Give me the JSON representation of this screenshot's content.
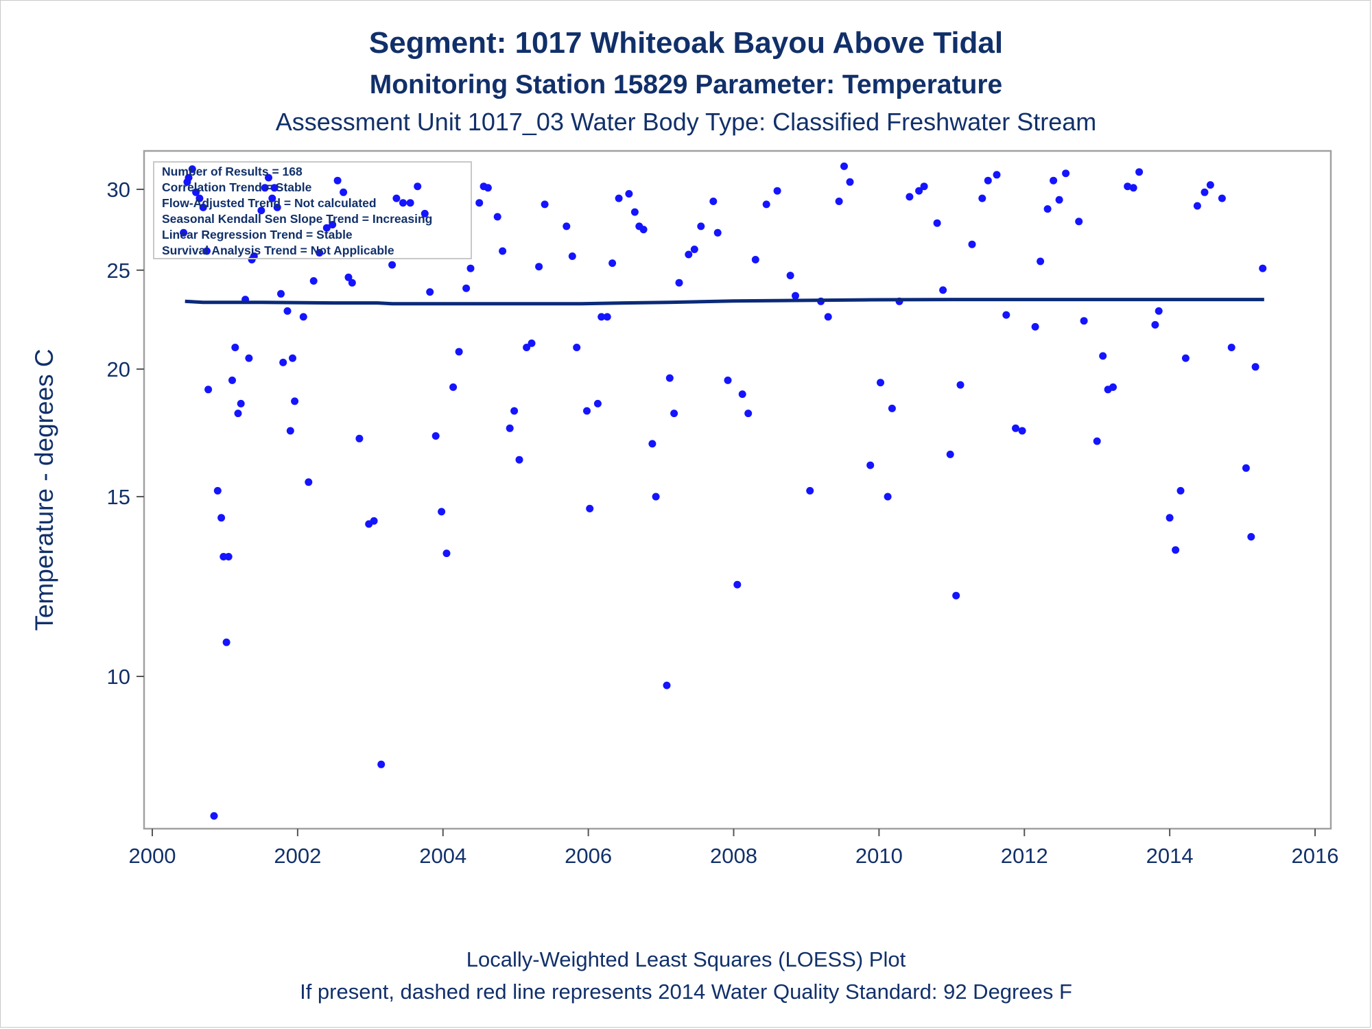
{
  "chart_data": {
    "type": "scatter",
    "title": "Segment: 1017  Whiteoak Bayou Above Tidal",
    "subtitle": "Monitoring Station 15829 Parameter: Temperature",
    "subtitle2": "Assessment Unit 1017_03   Water Body Type: Classified Freshwater Stream",
    "ylabel": "Temperature - degrees C",
    "xlabel": "",
    "footnote1": "Locally-Weighted Least Squares (LOESS) Plot",
    "footnote2": "If present, dashed red line represents 2014 Water Quality Standard: 92   Degrees F",
    "y_scale": "log",
    "xlim": [
      2000,
      2016
    ],
    "ylim": [
      7.5,
      32.5
    ],
    "x_ticks": [
      "2000",
      "2002",
      "2004",
      "2006",
      "2008",
      "2010",
      "2012",
      "2014",
      "2016"
    ],
    "y_ticks": [
      "10",
      "15",
      "20",
      "25",
      "30"
    ],
    "grid": false,
    "point_color": "#1414ff",
    "line_color": "#0b2a78",
    "stats_box": [
      "Number of Results = 168",
      "Correlation Trend = Stable",
      "Flow-Adjusted Trend = Not calculated",
      "Seasonal Kendall Sen Slope Trend = Increasing",
      "Linear Regression Trend = Stable",
      "Survival Analysis Trend = Not Applicable"
    ],
    "loess": {
      "x": [
        2000.45,
        2000.7,
        2001.5,
        2002.5,
        2003.1,
        2003.3,
        2004,
        2005,
        2005.9,
        2006.5,
        2007.1,
        2008,
        2009.8,
        2011,
        2012,
        2013,
        2014,
        2015.3
      ],
      "y": [
        23.3,
        23.25,
        23.25,
        23.22,
        23.22,
        23.18,
        23.18,
        23.18,
        23.18,
        23.22,
        23.25,
        23.32,
        23.38,
        23.4,
        23.4,
        23.4,
        23.4,
        23.4
      ]
    },
    "points": [
      [
        2000.43,
        27.2
      ],
      [
        2000.48,
        30.5
      ],
      [
        2000.5,
        30.8
      ],
      [
        2000.55,
        31.4
      ],
      [
        2000.6,
        29.8
      ],
      [
        2000.65,
        29.4
      ],
      [
        2000.7,
        28.8
      ],
      [
        2000.75,
        26.1
      ],
      [
        2000.77,
        19.1
      ],
      [
        2000.85,
        7.3
      ],
      [
        2000.9,
        15.2
      ],
      [
        2000.95,
        14.3
      ],
      [
        2000.98,
        13.1
      ],
      [
        2001.02,
        10.8
      ],
      [
        2001.05,
        13.1
      ],
      [
        2001.1,
        19.5
      ],
      [
        2001.14,
        21.0
      ],
      [
        2001.18,
        18.1
      ],
      [
        2001.22,
        18.5
      ],
      [
        2001.28,
        23.4
      ],
      [
        2001.33,
        20.5
      ],
      [
        2001.37,
        25.6
      ],
      [
        2001.4,
        25.8
      ],
      [
        2001.5,
        28.6
      ],
      [
        2001.55,
        30.1
      ],
      [
        2001.6,
        30.8
      ],
      [
        2001.65,
        29.4
      ],
      [
        2001.68,
        30.1
      ],
      [
        2001.72,
        28.8
      ],
      [
        2001.77,
        23.7
      ],
      [
        2001.8,
        20.3
      ],
      [
        2001.86,
        22.8
      ],
      [
        2001.9,
        17.4
      ],
      [
        2001.93,
        20.5
      ],
      [
        2001.96,
        18.6
      ],
      [
        2002.08,
        22.5
      ],
      [
        2002.15,
        15.5
      ],
      [
        2002.22,
        24.4
      ],
      [
        2002.3,
        26.0
      ],
      [
        2002.4,
        27.5
      ],
      [
        2002.48,
        27.7
      ],
      [
        2002.55,
        30.6
      ],
      [
        2002.63,
        29.8
      ],
      [
        2002.7,
        24.6
      ],
      [
        2002.75,
        24.3
      ],
      [
        2002.85,
        17.1
      ],
      [
        2002.98,
        14.1
      ],
      [
        2003.05,
        14.2
      ],
      [
        2003.15,
        8.2
      ],
      [
        2003.3,
        25.3
      ],
      [
        2003.36,
        29.4
      ],
      [
        2003.45,
        29.1
      ],
      [
        2003.55,
        29.1
      ],
      [
        2003.65,
        30.2
      ],
      [
        2003.75,
        28.4
      ],
      [
        2003.82,
        23.8
      ],
      [
        2003.9,
        17.2
      ],
      [
        2003.98,
        14.5
      ],
      [
        2004.05,
        13.2
      ],
      [
        2004.14,
        19.2
      ],
      [
        2004.22,
        20.8
      ],
      [
        2004.32,
        24.0
      ],
      [
        2004.38,
        25.1
      ],
      [
        2004.5,
        29.1
      ],
      [
        2004.56,
        30.2
      ],
      [
        2004.62,
        30.1
      ],
      [
        2004.75,
        28.2
      ],
      [
        2004.82,
        26.1
      ],
      [
        2004.92,
        17.5
      ],
      [
        2004.98,
        18.2
      ],
      [
        2005.05,
        16.3
      ],
      [
        2005.15,
        21.0
      ],
      [
        2005.22,
        21.2
      ],
      [
        2005.32,
        25.2
      ],
      [
        2005.4,
        29.0
      ],
      [
        2005.7,
        27.6
      ],
      [
        2005.78,
        25.8
      ],
      [
        2005.84,
        21.0
      ],
      [
        2005.98,
        18.2
      ],
      [
        2006.02,
        14.6
      ],
      [
        2006.13,
        18.5
      ],
      [
        2006.18,
        22.5
      ],
      [
        2006.26,
        22.5
      ],
      [
        2006.33,
        25.4
      ],
      [
        2006.42,
        29.4
      ],
      [
        2006.56,
        29.7
      ],
      [
        2006.64,
        28.5
      ],
      [
        2006.7,
        27.6
      ],
      [
        2006.76,
        27.4
      ],
      [
        2006.88,
        16.9
      ],
      [
        2006.93,
        15.0
      ],
      [
        2007.08,
        9.8
      ],
      [
        2007.12,
        19.6
      ],
      [
        2007.18,
        18.1
      ],
      [
        2007.25,
        24.3
      ],
      [
        2007.38,
        25.9
      ],
      [
        2007.46,
        26.2
      ],
      [
        2007.55,
        27.6
      ],
      [
        2007.72,
        29.2
      ],
      [
        2007.78,
        27.2
      ],
      [
        2007.92,
        19.5
      ],
      [
        2008.05,
        12.3
      ],
      [
        2008.12,
        18.9
      ],
      [
        2008.2,
        18.1
      ],
      [
        2008.3,
        25.6
      ],
      [
        2008.45,
        29.0
      ],
      [
        2008.6,
        29.9
      ],
      [
        2008.78,
        24.7
      ],
      [
        2008.85,
        23.6
      ],
      [
        2009.05,
        15.2
      ],
      [
        2009.2,
        23.3
      ],
      [
        2009.3,
        22.5
      ],
      [
        2009.45,
        29.2
      ],
      [
        2009.52,
        31.6
      ],
      [
        2009.6,
        30.5
      ],
      [
        2009.88,
        16.1
      ],
      [
        2010.02,
        19.4
      ],
      [
        2010.12,
        15.0
      ],
      [
        2010.18,
        18.3
      ],
      [
        2010.28,
        23.3
      ],
      [
        2010.42,
        29.5
      ],
      [
        2010.55,
        29.9
      ],
      [
        2010.62,
        30.2
      ],
      [
        2010.8,
        27.8
      ],
      [
        2010.88,
        23.9
      ],
      [
        2010.98,
        16.5
      ],
      [
        2011.06,
        12.0
      ],
      [
        2011.12,
        19.3
      ],
      [
        2011.28,
        26.5
      ],
      [
        2011.42,
        29.4
      ],
      [
        2011.5,
        30.6
      ],
      [
        2011.62,
        31.0
      ],
      [
        2011.75,
        22.6
      ],
      [
        2011.88,
        17.5
      ],
      [
        2011.97,
        17.4
      ],
      [
        2012.15,
        22.0
      ],
      [
        2012.22,
        25.5
      ],
      [
        2012.32,
        28.7
      ],
      [
        2012.4,
        30.6
      ],
      [
        2012.48,
        29.3
      ],
      [
        2012.57,
        31.1
      ],
      [
        2012.75,
        27.9
      ],
      [
        2012.82,
        22.3
      ],
      [
        2013.0,
        17.0
      ],
      [
        2013.08,
        20.6
      ],
      [
        2013.15,
        19.1
      ],
      [
        2013.22,
        19.2
      ],
      [
        2013.42,
        30.2
      ],
      [
        2013.5,
        30.1
      ],
      [
        2013.58,
        31.2
      ],
      [
        2013.8,
        22.1
      ],
      [
        2013.85,
        22.8
      ],
      [
        2014.0,
        14.3
      ],
      [
        2014.08,
        13.3
      ],
      [
        2014.15,
        15.2
      ],
      [
        2014.22,
        20.5
      ],
      [
        2014.38,
        28.9
      ],
      [
        2014.48,
        29.8
      ],
      [
        2014.56,
        30.3
      ],
      [
        2014.72,
        29.4
      ],
      [
        2014.85,
        21.0
      ],
      [
        2015.05,
        16.0
      ],
      [
        2015.12,
        13.7
      ],
      [
        2015.18,
        20.1
      ],
      [
        2015.28,
        25.1
      ]
    ]
  }
}
